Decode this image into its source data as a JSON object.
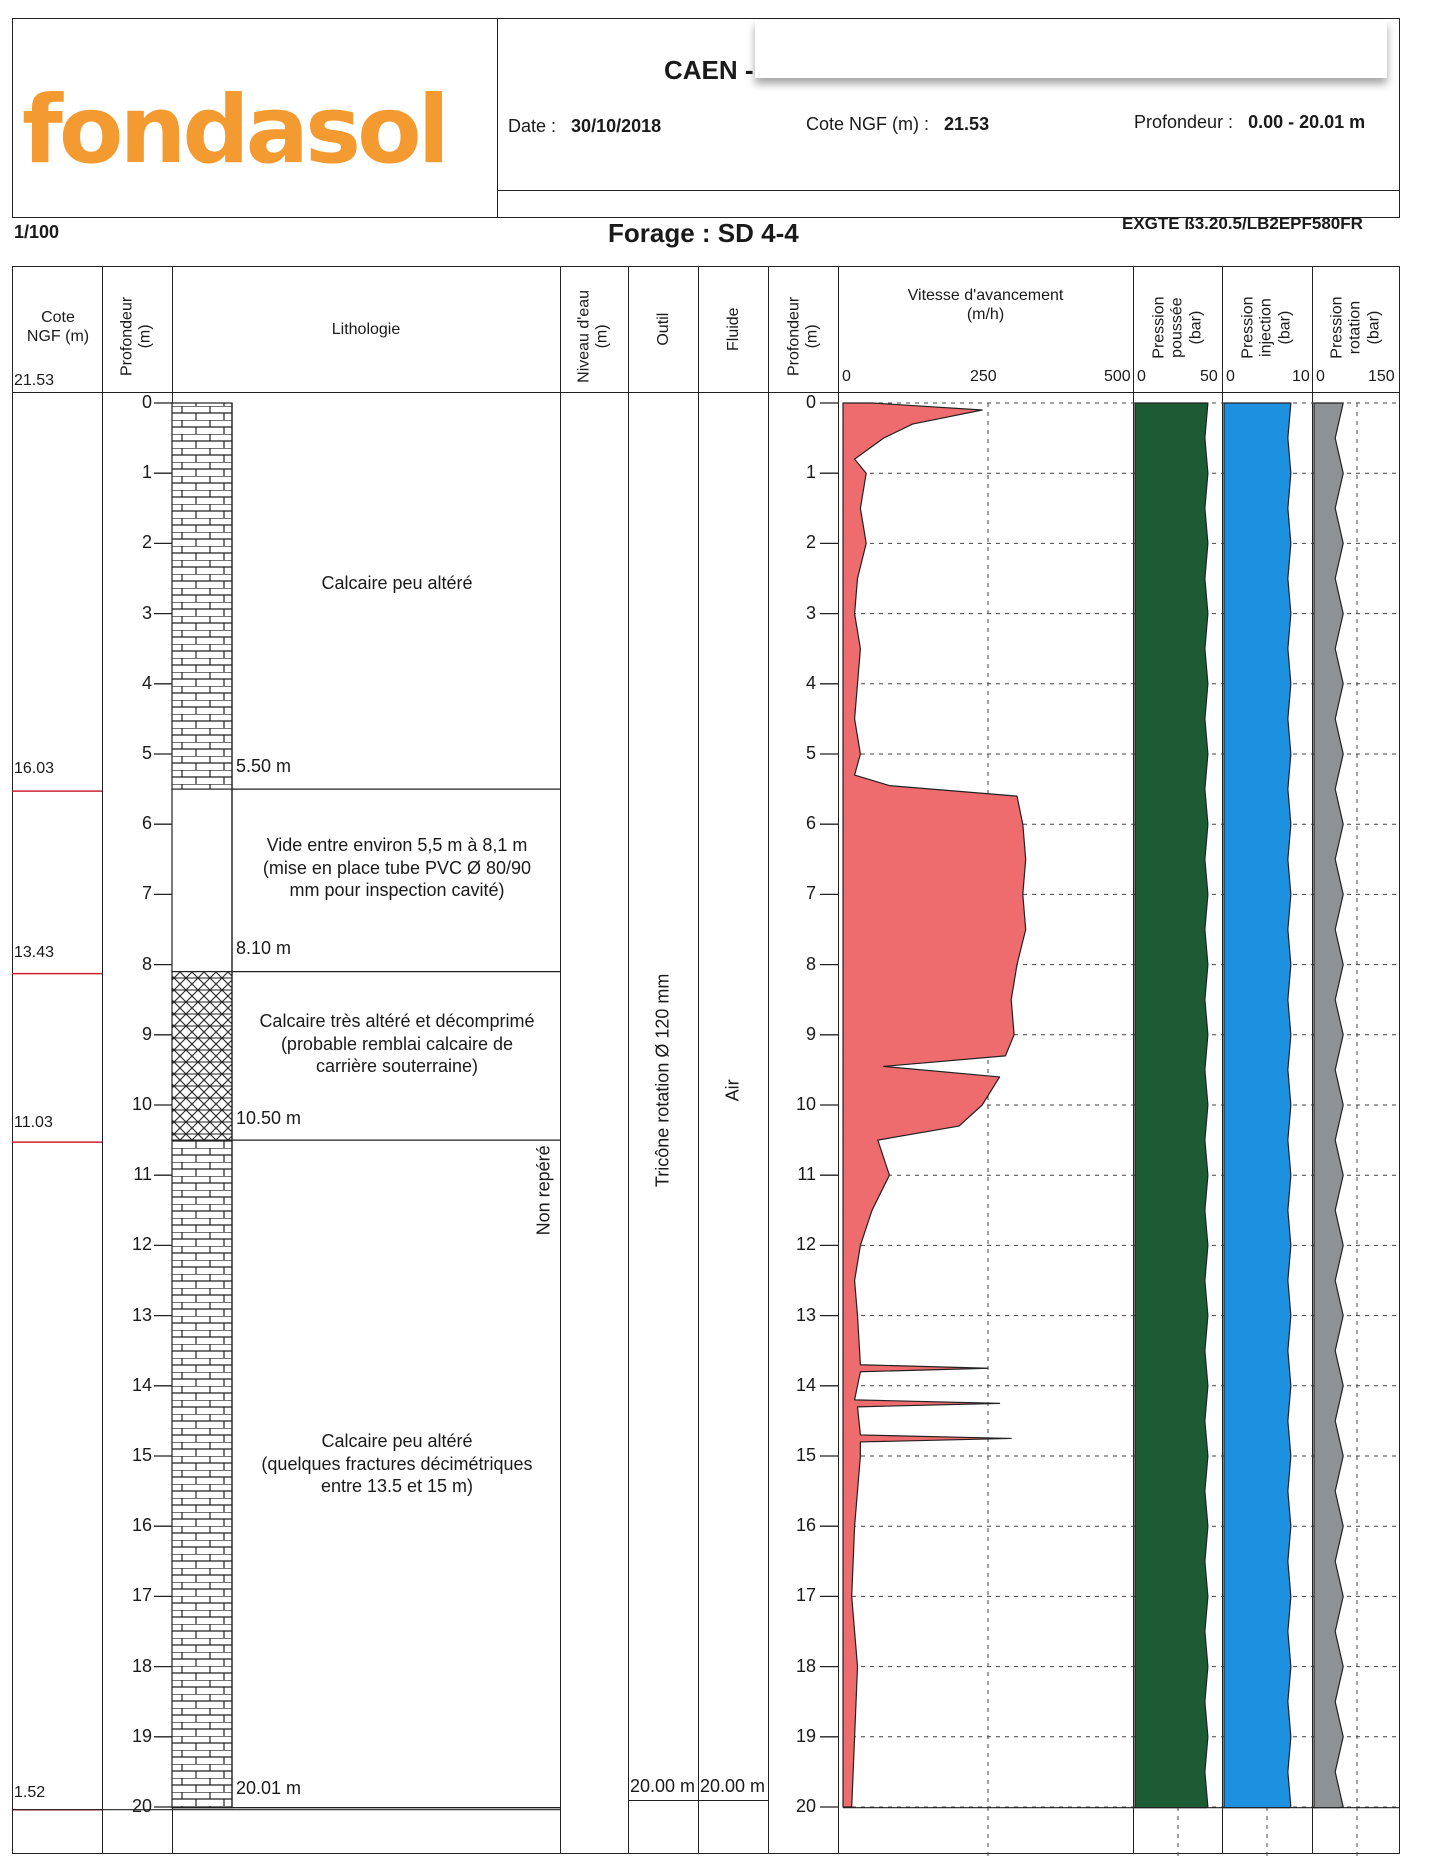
{
  "header": {
    "logo_text": "fondasol",
    "site_title": "CAEN -",
    "date_label": "Date :",
    "date_value": "30/10/2018",
    "cote_label": "Cote NGF (m) :",
    "cote_value": "21.53",
    "prof_label": "Profondeur :",
    "prof_value": "0.00 - 20.01 m",
    "scale": "1/100",
    "forage": "Forage : SD 4-4",
    "ref_code": "EXGTE ß3.20.5/LB2EPF580FR"
  },
  "columns": {
    "cote": "Cote\nNGF (m)",
    "profondeur": "Profondeur\n(m)",
    "lithologie": "Lithologie",
    "niveau_eau": "Niveau d'eau\n(m)",
    "outil": "Outil",
    "fluide": "Fluide",
    "profondeur2": "Profondeur\n(m)",
    "vitesse": "Vitesse d'avancement\n(m/h)",
    "p_poussee": "Pression\npoussée\n(bar)",
    "p_injection": "Pression\ninjection\n(bar)",
    "p_rotation": "Pression\nrotation\n(bar)",
    "cote_top": "21.53"
  },
  "axis_labels": {
    "vitesse": [
      "0",
      "250",
      "500"
    ],
    "poussee": [
      "0",
      "50"
    ],
    "injection": [
      "0",
      "10"
    ],
    "rotation": [
      "0",
      "150"
    ]
  },
  "depth_ticks": [
    "0",
    "1",
    "2",
    "3",
    "4",
    "5",
    "6",
    "7",
    "8",
    "9",
    "10",
    "11",
    "12",
    "13",
    "14",
    "15",
    "16",
    "17",
    "18",
    "19",
    "20"
  ],
  "layers": [
    {
      "top": 0,
      "bottom": 5.5,
      "pattern": "limestone",
      "description": "Calcaire peu altéré",
      "base_label": "5.50 m",
      "cote_base": "16.03"
    },
    {
      "top": 5.5,
      "bottom": 8.1,
      "pattern": "void",
      "description": "Vide entre environ 5,5 m à 8,1 m\n(mise en place tube PVC Ø 80/90\nmm pour inspection cavité)",
      "base_label": "8.10 m",
      "cote_base": "13.43"
    },
    {
      "top": 8.1,
      "bottom": 10.5,
      "pattern": "weathered",
      "description": "Calcaire très altéré et décomprimé\n(probable remblai calcaire de\ncarrière souterraine)",
      "base_label": "10.50 m",
      "cote_base": "11.03"
    },
    {
      "top": 10.5,
      "bottom": 20.01,
      "pattern": "limestone",
      "description": "Calcaire peu altéré\n(quelques fractures décimétriques\nentre 13.5 et 15 m)",
      "base_label": "20.01 m",
      "cote_base": "1.52"
    }
  ],
  "niveau_eau_text": "Non repéré",
  "outil_text": "Tricône rotation Ø 120 mm",
  "outil_end": "20.00 m",
  "fluide_text": "Air",
  "fluide_end": "20.00 m",
  "chart_data": {
    "type": "area",
    "title": "Vitesse d'avancement (m/h)",
    "x_range": [
      0,
      500
    ],
    "depth_range": [
      0,
      20.01
    ],
    "series": [
      {
        "name": "Vitesse d'avancement",
        "unit": "m/h",
        "color": "#ee6b6e",
        "depth": [
          0,
          0.1,
          0.3,
          0.5,
          0.8,
          1.0,
          1.5,
          2.0,
          2.5,
          3.0,
          3.5,
          4.0,
          4.5,
          5.0,
          5.3,
          5.45,
          5.6,
          6.0,
          6.5,
          7.0,
          7.5,
          8.0,
          8.5,
          9.0,
          9.3,
          9.45,
          9.6,
          10.0,
          10.3,
          10.5,
          11.0,
          11.5,
          12.0,
          12.5,
          13.0,
          13.7,
          13.75,
          13.8,
          14.0,
          14.2,
          14.25,
          14.3,
          14.7,
          14.75,
          14.8,
          15.0,
          16.0,
          17.0,
          18.0,
          19.0,
          20.0
        ],
        "values": [
          50,
          240,
          120,
          70,
          20,
          40,
          30,
          40,
          25,
          20,
          30,
          25,
          20,
          30,
          20,
          80,
          300,
          310,
          315,
          310,
          315,
          300,
          290,
          295,
          280,
          70,
          270,
          240,
          200,
          60,
          80,
          50,
          30,
          20,
          25,
          30,
          250,
          30,
          25,
          20,
          270,
          25,
          30,
          290,
          30,
          30,
          20,
          15,
          25,
          20,
          15
        ]
      },
      {
        "name": "Pression poussée",
        "unit": "bar",
        "color": "#1d5b34",
        "max": 50,
        "typical": 42
      },
      {
        "name": "Pression injection",
        "unit": "bar",
        "color": "#1e90e0",
        "max": 10,
        "typical": 7.6
      },
      {
        "name": "Pression rotation",
        "unit": "bar",
        "color": "#8e9294",
        "max": 150,
        "typical": 45
      }
    ]
  }
}
